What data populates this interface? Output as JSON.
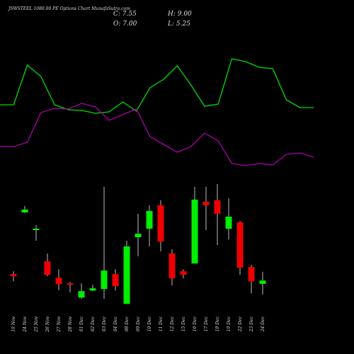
{
  "chart_data": [
    {
      "type": "candlestick",
      "title": "JSWSTEEL 1080.00 PE Options  Chart MunafaSutra.com",
      "annotations": [
        "C: 7.55",
        "H: 9.00",
        "O: 7.00",
        "L: 5.25"
      ],
      "categories": [
        "19 Nov",
        "24 Nov",
        "25 Nov",
        "26 Nov",
        "27 Nov",
        "28 Nov",
        "01 Dec",
        "02 Dec",
        "03 Dec",
        "04 Dec",
        "08 Dec",
        "09 Dec",
        "10 Dec",
        "11 Dec",
        "12 Dec",
        "15 Dec",
        "16 Dec",
        "17 Dec",
        "18 Dec",
        "19 Dec",
        "22 Dec",
        "23 Dec",
        "24 Dec"
      ],
      "open": [
        8.61,
        18.84,
        15.9,
        10.73,
        8.02,
        7.08,
        4.73,
        5.9,
        6.14,
        8.61,
        3.67,
        14.73,
        16.14,
        20.02,
        12.02,
        9.08,
        10.37,
        20.61,
        20.84,
        16.14,
        17.2,
        9.79,
        7.0
      ],
      "high": [
        9.08,
        19.9,
        16.73,
        12.02,
        9.43,
        7.31,
        7.08,
        6.84,
        23.08,
        9.43,
        14.14,
        18.61,
        20.02,
        20.84,
        12.73,
        9.43,
        23.08,
        23.08,
        23.55,
        21.2,
        17.4,
        10.14,
        9.0
      ],
      "low": [
        7.43,
        18.73,
        14.14,
        8.26,
        5.9,
        5.55,
        4.49,
        5.79,
        4.49,
        5.9,
        3.67,
        11.55,
        13.2,
        12.37,
        6.73,
        7.9,
        10.37,
        15.9,
        13.43,
        14.37,
        8.49,
        5.43,
        5.25
      ],
      "close": [
        8.26,
        19.31,
        16.14,
        8.49,
        6.96,
        6.84,
        5.79,
        6.26,
        9.2,
        6.61,
        13.2,
        15.31,
        19.08,
        14.02,
        7.9,
        8.49,
        20.96,
        20.02,
        18.61,
        18.14,
        9.67,
        7.43,
        7.55
      ],
      "up_color": "#00ee00",
      "down_color": "#ee0000",
      "ylim": [
        3,
        24
      ]
    },
    {
      "type": "line",
      "series": [
        {
          "color": "#00dd00",
          "values": [
            56,
            56,
            84,
            76,
            56,
            52.5,
            52,
            50,
            51,
            58,
            51.5,
            68,
            74,
            83.5,
            70,
            55,
            56.5,
            88.5,
            86.5,
            82.5,
            81.5,
            59.5,
            54,
            54
          ]
        },
        {
          "color": "#aa00aa",
          "values": [
            26.5,
            26.5,
            29.5,
            50.5,
            53.5,
            53,
            57,
            54.5,
            45,
            49,
            53,
            33.5,
            28,
            22.5,
            26.5,
            36,
            30.5,
            14.5,
            13,
            14.5,
            13.5,
            21,
            22,
            19
          ]
        }
      ],
      "ylim": [
        0,
        100
      ]
    }
  ]
}
